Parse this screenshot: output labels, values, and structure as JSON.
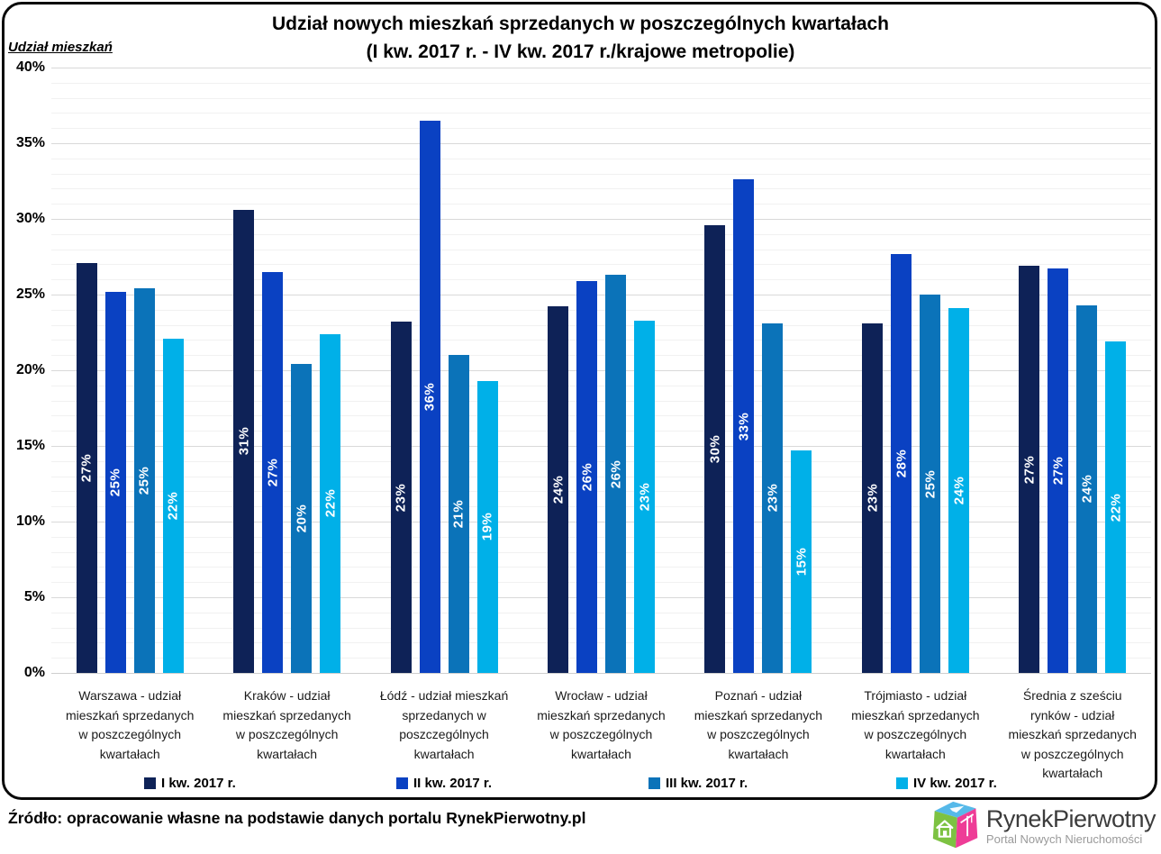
{
  "chart_data": {
    "type": "bar",
    "title": "Udział nowych mieszkań sprzedanych w poszczególnych kwartałach",
    "subtitle": "(I kw. 2017 r. - IV kw. 2017 r./krajowe metropolie)",
    "ylabel": "Udział mieszkań",
    "xlabel": "",
    "ylim": [
      0,
      40
    ],
    "y_tick_step": 5,
    "y_ticks": [
      "0%",
      "5%",
      "10%",
      "15%",
      "20%",
      "25%",
      "30%",
      "35%",
      "40%"
    ],
    "grid": "horizontal, minor every 1%, major every 5%",
    "legend_position": "bottom",
    "categories": [
      "Warszawa - udział\nmieszkań sprzedanych\nw poszczególnych\nkwartałach",
      "Kraków - udział\nmieszkań sprzedanych\nw poszczególnych\nkwartałach",
      "Łódź - udział mieszkań\nsprzedanych w\nposzczególnych\nkwartałach",
      "Wrocław - udział\nmieszkań sprzedanych\nw poszczególnych\nkwartałach",
      "Poznań - udział\nmieszkań sprzedanych\nw poszczególnych\nkwartałach",
      "Trójmiasto - udział\nmieszkań sprzedanych\nw poszczególnych\nkwartałach",
      "Średnia z sześciu\nrynków - udział\nmieszkań sprzedanych\nw poszczególnych\nkwartałach"
    ],
    "series": [
      {
        "name": "I kw. 2017 r.",
        "color": "#0e2257",
        "values": [
          27.1,
          30.6,
          23.2,
          24.2,
          29.6,
          23.1,
          26.9
        ],
        "bar_labels": [
          "27%",
          "31%",
          "23%",
          "24%",
          "30%",
          "23%",
          "27%"
        ]
      },
      {
        "name": "II kw. 2017 r.",
        "color": "#0a41c2",
        "values": [
          25.2,
          26.5,
          36.5,
          25.9,
          32.6,
          27.7,
          26.7
        ],
        "bar_labels": [
          "25%",
          "27%",
          "36%",
          "26%",
          "33%",
          "28%",
          "27%"
        ]
      },
      {
        "name": "III kw. 2017 r.",
        "color": "#0b73b9",
        "values": [
          25.4,
          20.4,
          21.0,
          26.3,
          23.1,
          25.0,
          24.3
        ],
        "bar_labels": [
          "25%",
          "20%",
          "21%",
          "26%",
          "23%",
          "25%",
          "24%"
        ]
      },
      {
        "name": "IV kw. 2017 r.",
        "color": "#00b0e8",
        "values": [
          22.1,
          22.4,
          19.3,
          23.3,
          14.7,
          24.1,
          21.9
        ],
        "bar_labels": [
          "22%",
          "22%",
          "19%",
          "23%",
          "15%",
          "24%",
          "22%"
        ]
      }
    ]
  },
  "footer": {
    "source": "Źródło: opracowanie własne na podstawie danych portalu RynekPierwotny.pl",
    "logo_text": "RynekPierwotny",
    "logo_subtitle": "Portal Nowych Nieruchomości"
  },
  "logo_colors": {
    "top_face": "#56b9e9",
    "left_face": "#7dc242",
    "right_face": "#ee3d97"
  }
}
